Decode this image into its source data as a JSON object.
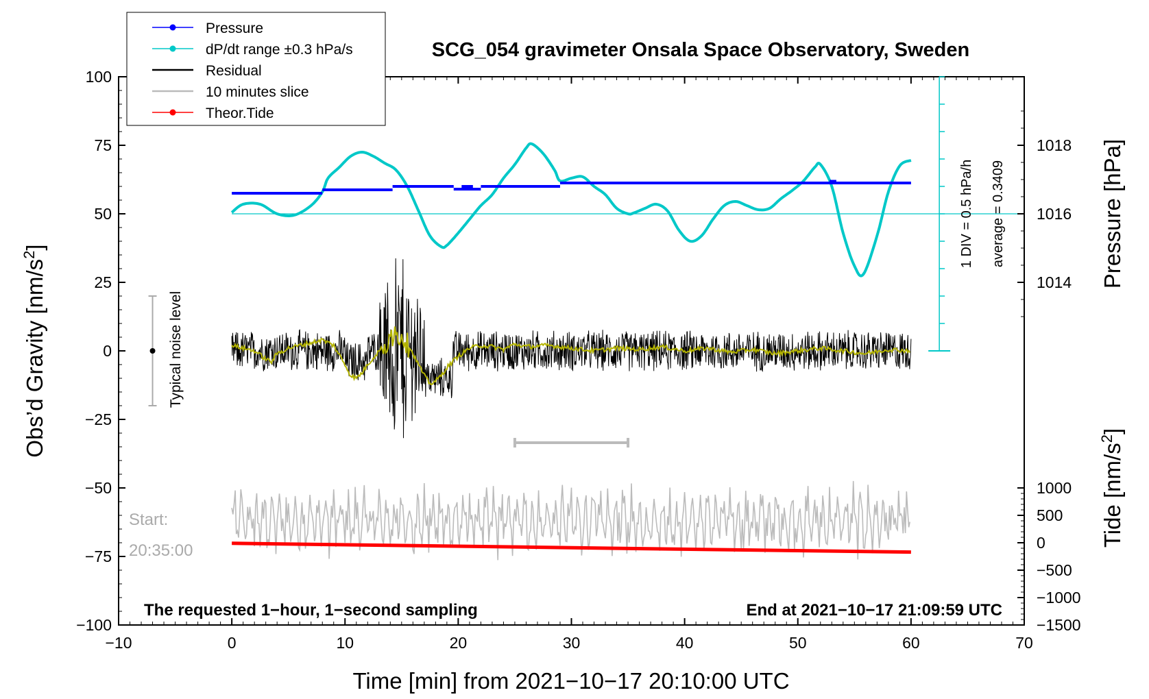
{
  "chart_data": {
    "type": "line",
    "title": "SCG_054 gravimeter Onsala Space Observatory, Sweden",
    "xlabel": "Time [min] from 2021−10−17 20:10:00 UTC",
    "ylabel_left_main": "Obs’d Gravity [nm/s",
    "ylabel_left_sup": "2",
    "ylabel_left_tail": "]",
    "ylabel_right_pressure": "Pressure [hPa]",
    "ylabel_right_tide_main": "Tide [nm/s",
    "ylabel_right_tide_sup": "2",
    "ylabel_right_tide_tail": "]",
    "xlim": [
      -10,
      70
    ],
    "ylim": [
      -100,
      100
    ],
    "x_ticks": [
      -10,
      0,
      10,
      20,
      30,
      40,
      50,
      60,
      70
    ],
    "x_tick_labels": [
      "−10",
      "0",
      "10",
      "20",
      "30",
      "40",
      "50",
      "60",
      "70"
    ],
    "y_ticks": [
      100,
      75,
      50,
      25,
      0,
      -25,
      -50,
      -75,
      -100
    ],
    "y_tick_labels": [
      "100",
      "75",
      "50",
      "25",
      "0",
      "−25",
      "−50",
      "−75",
      "−100"
    ],
    "pressure_ticks": [
      1018,
      1016,
      1014
    ],
    "pressure_tick_labels": [
      "1018",
      "1016",
      "1014"
    ],
    "pressure_ref_value": 1016,
    "pressure_ref_gravity_y": 50,
    "pressure_gravity_per_hpa": 12.5,
    "tide_ticks": [
      1000,
      500,
      0,
      -500,
      -1000,
      -1500
    ],
    "tide_tick_labels": [
      "1000",
      "500",
      "0",
      "−500",
      "−1000",
      "−1500"
    ],
    "tide_ref_gravity_y": -100,
    "tide_ref_value": -1500,
    "tide_gravity_per_unit": 0.02,
    "legend": [
      {
        "label": "Pressure",
        "color": "#0000ff",
        "marker": true
      },
      {
        "label": "dP/dt range ±0.3 hPa/s",
        "color": "#00c8c8",
        "marker": true
      },
      {
        "label": "Residual",
        "color": "#000000",
        "marker": false
      },
      {
        "label": "10 minutes slice",
        "color": "#bbbbbb",
        "marker": false
      },
      {
        "label": "Theor.Tide",
        "color": "#ff0000",
        "marker": true
      }
    ],
    "legend_placement": "top-left",
    "annotations": {
      "noise_label": "Typical noise level",
      "noise_range": [
        -20,
        20
      ],
      "noise_x": -7,
      "div_label": "1 DIV = 0.5 hPa/h",
      "average_label": "average = 0.3409",
      "start_label": "Start:",
      "start_time": "20:35:00",
      "bottom_left": "The requested 1−hour, 1−second sampling",
      "bottom_right": "End at 2021−10−17 21:09:59 UTC",
      "slice_range_x": [
        25,
        35
      ],
      "slice_bar_y": -33.5
    },
    "series": [
      {
        "name": "Pressure",
        "color": "#0000ff",
        "unit": "hPa",
        "segments": [
          {
            "x": [
              0,
              8
            ],
            "y": 1016.6
          },
          {
            "x": [
              8,
              14.2
            ],
            "y": 1016.7
          },
          {
            "x": [
              14.2,
              19.6
            ],
            "y": 1016.8
          },
          {
            "x": [
              19.6,
              22
            ],
            "y": 1016.72
          },
          {
            "x": [
              20.3,
              21.3
            ],
            "y": 1016.8
          },
          {
            "x": [
              22,
              29
            ],
            "y": 1016.8
          },
          {
            "x": [
              29,
              60
            ],
            "y": 1016.9
          },
          {
            "x": [
              52.8,
              53.4
            ],
            "y": 1016.95
          }
        ]
      },
      {
        "name": "dP/dt range ±0.3 hPa/s",
        "color": "#00c8c8",
        "x": [
          0,
          1,
          2.5,
          4,
          5.5,
          7,
          8,
          8.5,
          9.5,
          10.5,
          11.5,
          12.5,
          13.5,
          14.5,
          15.5,
          16.5,
          17.5,
          18.5,
          19,
          20,
          21,
          22,
          23,
          24,
          25,
          26,
          26.5,
          27.5,
          28.5,
          29,
          30,
          31,
          32,
          33,
          34,
          35,
          35.5,
          36.5,
          37.5,
          38.5,
          39.5,
          40.5,
          41.5,
          42.5,
          43.5,
          44.5,
          45.5,
          46.5,
          47.5,
          48.5,
          49.5,
          50.5,
          51.5,
          52,
          53,
          54,
          55,
          55.8,
          57,
          58,
          59,
          60
        ],
        "y": [
          50.5,
          53.5,
          53.5,
          50,
          49.5,
          53,
          58,
          63,
          67,
          71,
          72.5,
          71,
          68.5,
          66,
          60,
          51,
          42,
          38,
          38.5,
          43,
          48,
          53,
          57,
          63,
          68,
          74,
          75.5,
          72,
          66,
          62,
          63,
          63.5,
          60,
          57,
          52,
          50,
          50.3,
          52,
          53.5,
          51,
          44,
          40,
          42,
          48,
          53,
          54.5,
          53,
          51.5,
          52,
          55.5,
          58.5,
          62,
          67,
          68,
          60,
          43,
          31,
          28,
          42,
          58,
          67.5,
          69.5
        ]
      },
      {
        "name": "Residual",
        "color": "#000000",
        "noise_amplitude": 15,
        "event_x": [
          13,
          17
        ],
        "event_peak_range": [
          -35,
          40
        ]
      },
      {
        "name": "Residual smoothed",
        "color": "#b4b400",
        "x": [
          0,
          2,
          3,
          3.5,
          4,
          5,
          6,
          7,
          8,
          9,
          10,
          10.5,
          11,
          11.5,
          12,
          13,
          14,
          14.8,
          15.5,
          16,
          16.5,
          17,
          17.5,
          18,
          18.5,
          19,
          20,
          21,
          22,
          23,
          24,
          25,
          26,
          28,
          30,
          32,
          34,
          36,
          38,
          40,
          42,
          44,
          46,
          48,
          50,
          52,
          54,
          56,
          58,
          60
        ],
        "y": [
          2,
          0,
          -3,
          -4,
          -1,
          1,
          2,
          3,
          4,
          2,
          -5,
          -9,
          -10,
          -8,
          -5,
          0,
          4,
          6,
          3,
          -1,
          -5,
          -9,
          -12,
          -11,
          -9,
          -6,
          -2,
          1,
          2,
          1.5,
          0.5,
          2.5,
          1.5,
          2,
          1,
          0,
          1,
          0.5,
          1.5,
          0,
          1,
          -0.5,
          0.5,
          -1,
          0,
          1,
          0,
          -1,
          0.5,
          0
        ]
      },
      {
        "name": "10 minutes slice",
        "color": "#bbbbbb",
        "center_y": -62,
        "amplitude": 12
      },
      {
        "name": "Theor.Tide",
        "color": "#ff0000",
        "unit": "nm/s²",
        "x": [
          0,
          60
        ],
        "y": [
          -9.5,
          -171
        ]
      }
    ]
  }
}
